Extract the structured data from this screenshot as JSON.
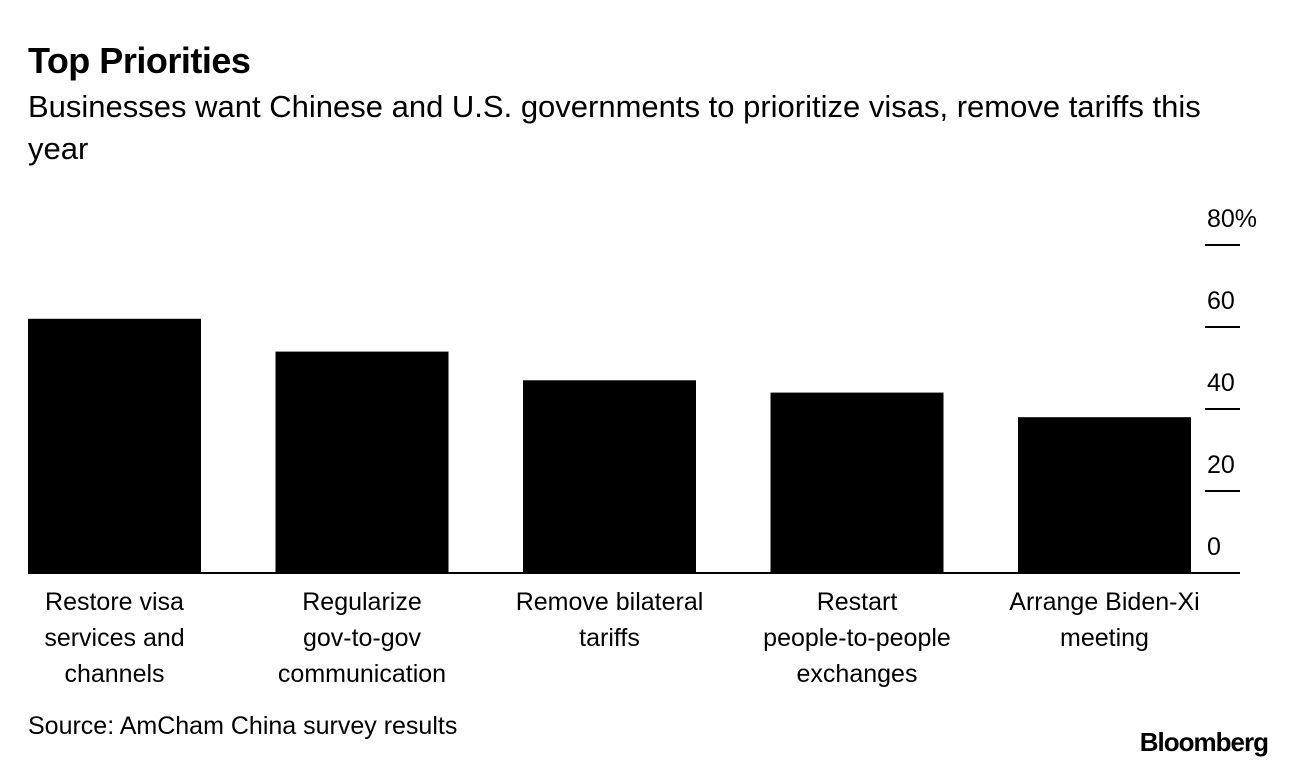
{
  "header": {
    "title": "Top Priorities",
    "subtitle": "Businesses want Chinese and U.S. governments to prioritize visas, remove tariffs this year"
  },
  "footer": {
    "source": "Source: AmCham China survey results",
    "logo": "Bloomberg"
  },
  "colors": {
    "bar": "#000000",
    "axis": "#000000",
    "text": "#000000",
    "background": "#ffffff"
  },
  "chart_data": {
    "type": "bar",
    "title": "Top Priorities",
    "subtitle": "Businesses want Chinese and U.S. governments to prioritize visas, remove tariffs this year",
    "categories": [
      "Restore visa services and channels",
      "Regularize gov-to-gov communication",
      "Remove bilateral tariffs",
      "Restart people-to-people exchanges",
      "Arrange Biden-Xi meeting"
    ],
    "category_label_lines": [
      [
        "Restore visa",
        "services and",
        "channels"
      ],
      [
        "Regularize",
        "gov-to-gov",
        "communication"
      ],
      [
        "Remove bilateral",
        "tariffs"
      ],
      [
        "Restart",
        "people-to-people",
        "exchanges"
      ],
      [
        "Arrange Biden-Xi",
        "meeting"
      ]
    ],
    "values": [
      62,
      54,
      47,
      44,
      38
    ],
    "ylim": [
      0,
      80
    ],
    "yticks": [
      0,
      20,
      40,
      60,
      80
    ],
    "ytick_labels": [
      "0",
      "20",
      "40",
      "60",
      "80%"
    ],
    "y_axis_side": "right",
    "xlabel": "",
    "ylabel": "",
    "grid": false,
    "legend": "none"
  }
}
